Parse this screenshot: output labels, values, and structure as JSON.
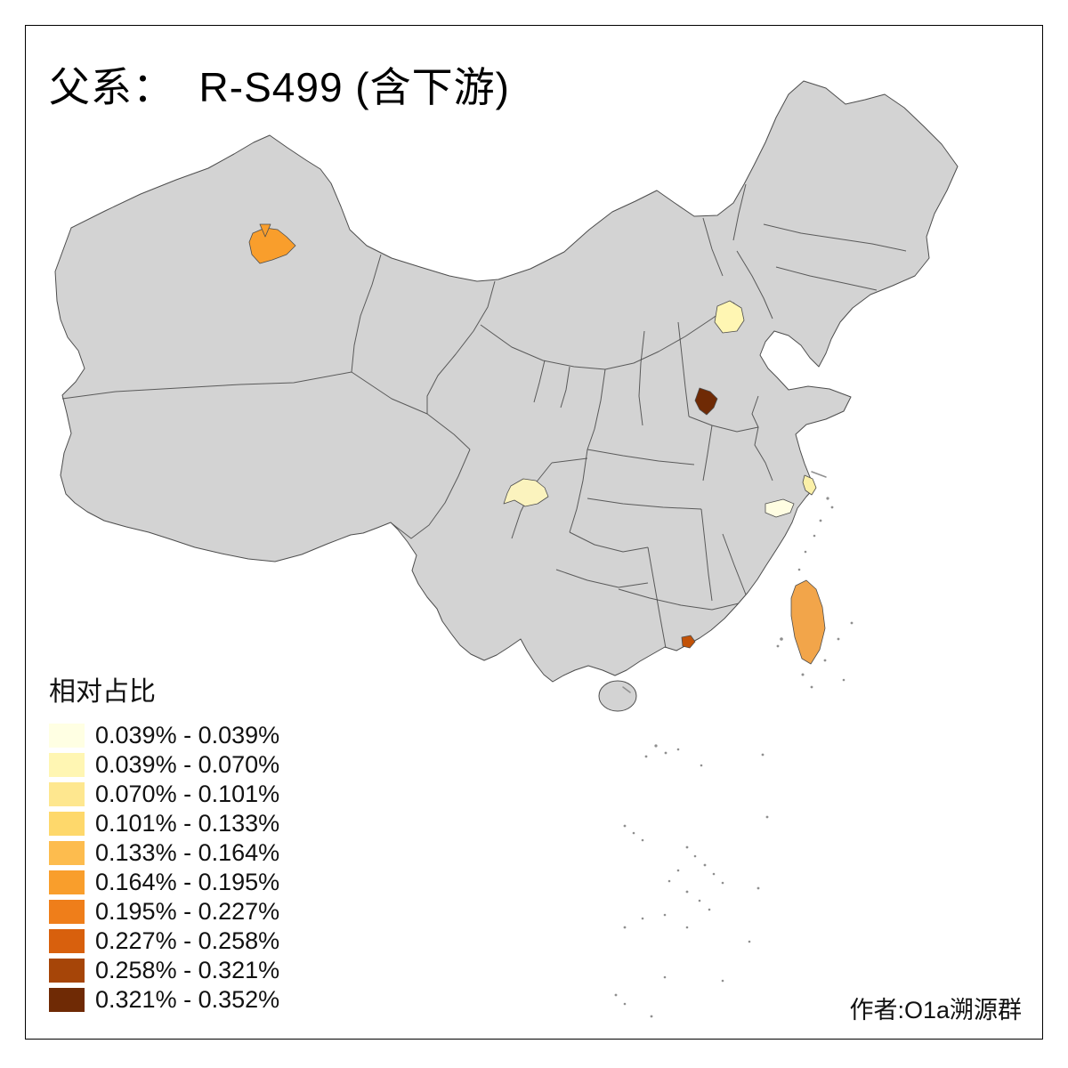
{
  "title": "父系：  R-S499 (含下游)",
  "author": "作者:O1a溯源群",
  "legend": {
    "title": "相对占比",
    "classes": [
      {
        "label": "0.039% - 0.039%",
        "color": "#FFFFE3"
      },
      {
        "label": "0.039% - 0.070%",
        "color": "#FFF6B3"
      },
      {
        "label": "0.070% - 0.101%",
        "color": "#FEE78F"
      },
      {
        "label": "0.101% - 0.133%",
        "color": "#FED86B"
      },
      {
        "label": "0.133% - 0.164%",
        "color": "#FDBC4E"
      },
      {
        "label": "0.164% - 0.195%",
        "color": "#F99E2C"
      },
      {
        "label": "0.195% - 0.227%",
        "color": "#EF7E1A"
      },
      {
        "label": "0.227% - 0.258%",
        "color": "#D8600D"
      },
      {
        "label": "0.258% - 0.321%",
        "color": "#A64508"
      },
      {
        "label": "0.321% - 0.352%",
        "color": "#6F2A05"
      }
    ]
  },
  "map": {
    "base_fill": "#d3d3d3",
    "border_color": "#4d4d4d",
    "regions": [
      {
        "id": "xinjiang-region",
        "legend_class": "0.164% - 0.195%",
        "color": "#F99E2C"
      },
      {
        "id": "beijing-region",
        "legend_class": "0.039% - 0.070%",
        "color": "#FFF6B3"
      },
      {
        "id": "hebei-region",
        "legend_class": "0.321% - 0.352%",
        "color": "#6F2A05"
      },
      {
        "id": "sichuan-region",
        "legend_class": "0.039% - 0.070%",
        "color": "#FBF3BE"
      },
      {
        "id": "shanghai-region",
        "legend_class": "0.039% - 0.070%",
        "color": "#FBF0A8"
      },
      {
        "id": "zhejiang-region",
        "legend_class": "0.039% - 0.039%",
        "color": "#FFFDE2"
      },
      {
        "id": "guangdong-region",
        "legend_class": "0.227% - 0.258%",
        "color": "#C25208"
      },
      {
        "id": "taiwan-region",
        "legend_class": "0.133% - 0.164%",
        "color": "#F2A54A"
      }
    ]
  }
}
